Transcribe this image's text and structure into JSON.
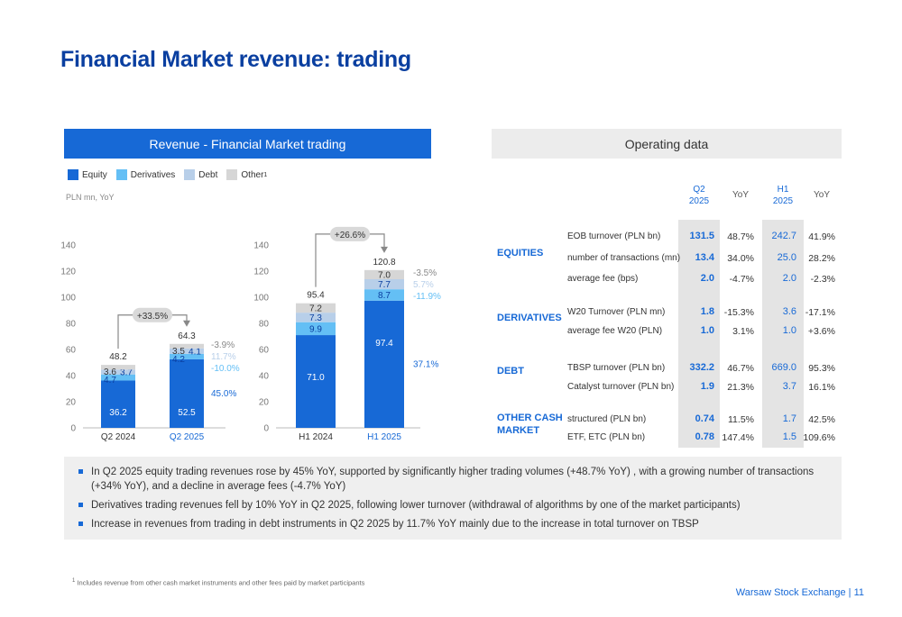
{
  "title": "Financial Market revenue: trading",
  "revenue_header": "Revenue - Financial Market trading",
  "operating_header": "Operating data",
  "legend": [
    "Equity",
    "Derivatives",
    "Debt",
    "Other"
  ],
  "legend_other_sup": "1",
  "unit": "PLN mn, YoY",
  "colors": {
    "equity": "#1769d6",
    "derivatives": "#64bff5",
    "debt": "#b8cfe9",
    "other": "#d6d6d6",
    "accent": "#1769d6"
  },
  "chart_data": [
    {
      "type": "bar",
      "stacked": true,
      "categories": [
        "Q2 2024",
        "Q2 2025"
      ],
      "series": [
        {
          "name": "Equity",
          "values": [
            36.2,
            52.5
          ]
        },
        {
          "name": "Derivatives",
          "values": [
            4.7,
            4.2
          ]
        },
        {
          "name": "Debt",
          "values": [
            3.7,
            4.1
          ]
        },
        {
          "name": "Other",
          "values": [
            3.6,
            3.5
          ]
        }
      ],
      "totals": [
        48.2,
        64.3
      ],
      "yoy_labels": [
        "-3.9%",
        "11.7%",
        "-10.0%",
        "45.0%"
      ],
      "growth_label": "+33.5%",
      "ylim": [
        0,
        140
      ],
      "yticks": [
        0,
        20,
        40,
        60,
        80,
        100,
        120,
        140
      ]
    },
    {
      "type": "bar",
      "stacked": true,
      "categories": [
        "H1 2024",
        "H1 2025"
      ],
      "series": [
        {
          "name": "Equity",
          "values": [
            71.0,
            97.4
          ]
        },
        {
          "name": "Derivatives",
          "values": [
            9.9,
            8.7
          ]
        },
        {
          "name": "Debt",
          "values": [
            7.3,
            7.7
          ]
        },
        {
          "name": "Other",
          "values": [
            7.2,
            7.0
          ]
        }
      ],
      "totals": [
        95.4,
        120.8
      ],
      "yoy_labels": [
        "-3.5%",
        "5.7%",
        "-11.9%",
        "37.1%"
      ],
      "growth_label": "+26.6%",
      "ylim": [
        0,
        140
      ],
      "yticks": [
        0,
        20,
        40,
        60,
        80,
        100,
        120,
        140
      ]
    }
  ],
  "op_columns": {
    "q2": "Q2",
    "q2_year": "2025",
    "yoy1": "YoY",
    "h1": "H1",
    "h1_year": "2025",
    "yoy2": "YoY"
  },
  "operating": [
    {
      "section": "EQUITIES",
      "rows": [
        {
          "label": "EOB turnover (PLN bn)",
          "q2": "131.5",
          "yoy1": "48.7%",
          "h1": "242.7",
          "yoy2": "41.9%"
        },
        {
          "label": "number of transactions (mn)",
          "q2": "13.4",
          "yoy1": "34.0%",
          "h1": "25.0",
          "yoy2": "28.2%"
        },
        {
          "label": "average fee (bps)",
          "q2": "2.0",
          "yoy1": "-4.7%",
          "h1": "2.0",
          "yoy2": "-2.3%"
        }
      ]
    },
    {
      "section": "DERIVATIVES",
      "rows": [
        {
          "label": "W20 Turnover (PLN mn)",
          "q2": "1.8",
          "yoy1": "-15.3%",
          "h1": "3.6",
          "yoy2": "-17.1%"
        },
        {
          "label": "average fee W20 (PLN)",
          "q2": "1.0",
          "yoy1": "3.1%",
          "h1": "1.0",
          "yoy2": "+3.6%"
        }
      ]
    },
    {
      "section": "DEBT",
      "rows": [
        {
          "label": "TBSP turnover (PLN bn)",
          "q2": "332.2",
          "yoy1": "46.7%",
          "h1": "669.0",
          "yoy2": "95.3%"
        },
        {
          "label": "Catalyst turnover (PLN bn)",
          "q2": "1.9",
          "yoy1": "21.3%",
          "h1": "3.7",
          "yoy2": "16.1%"
        }
      ]
    },
    {
      "section_line1": "OTHER CASH",
      "section_line2": "MARKET",
      "rows": [
        {
          "label": "structured (PLN bn)",
          "q2": "0.74",
          "yoy1": "11.5%",
          "h1": "1.7",
          "yoy2": "42.5%"
        },
        {
          "label": "ETF, ETC (PLN bn)",
          "q2": "0.78",
          "yoy1": "147.4%",
          "h1": "1.5",
          "yoy2": "109.6%"
        }
      ]
    }
  ],
  "notes": [
    "In Q2 2025 equity trading revenues rose by 45% YoY, supported by significantly higher trading volumes (+48.7% YoY) , with a growing number of transactions (+34% YoY), and  a decline in average fees (-4.7% YoY)",
    "Derivatives trading revenues fell by 10% YoY in Q2 2025, following lower turnover (withdrawal of algorithms by one of the market participants)",
    "Increase in revenues from trading in debt instruments in Q2 2025 by 11.7% YoY mainly due to the increase in total turnover on TBSP"
  ],
  "footnote_sup": "1",
  "footnote": "Includes revenue from other cash market instruments and other fees paid by market participants",
  "footer": "Warsaw Stock Exchange | 11"
}
